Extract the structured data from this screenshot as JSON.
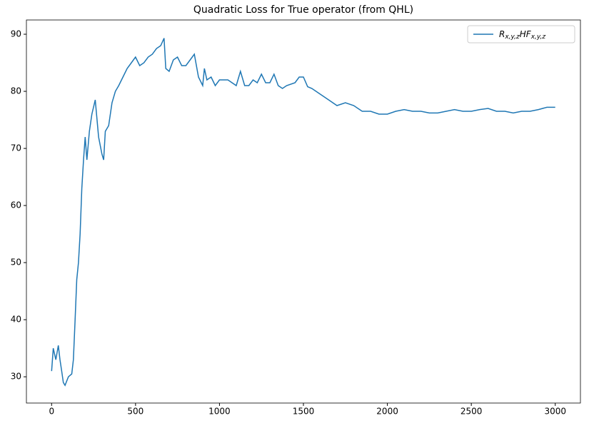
{
  "chart_data": {
    "type": "line",
    "title": "Quadratic Loss for True operator (from QHL)",
    "x": [
      0,
      10,
      25,
      40,
      50,
      60,
      70,
      80,
      100,
      120,
      130,
      140,
      150,
      160,
      170,
      180,
      190,
      200,
      210,
      225,
      240,
      260,
      280,
      300,
      310,
      320,
      340,
      360,
      380,
      400,
      425,
      450,
      475,
      500,
      525,
      550,
      575,
      600,
      625,
      650,
      670,
      680,
      700,
      725,
      750,
      775,
      800,
      825,
      850,
      875,
      900,
      910,
      925,
      950,
      975,
      1000,
      1050,
      1100,
      1125,
      1150,
      1175,
      1200,
      1225,
      1250,
      1275,
      1300,
      1325,
      1350,
      1375,
      1400,
      1450,
      1475,
      1500,
      1525,
      1550,
      1600,
      1625,
      1650,
      1700,
      1750,
      1800,
      1850,
      1900,
      1950,
      2000,
      2050,
      2100,
      2150,
      2200,
      2250,
      2300,
      2350,
      2400,
      2450,
      2500,
      2550,
      2600,
      2650,
      2700,
      2750,
      2800,
      2850,
      2900,
      2950,
      3000
    ],
    "series": [
      {
        "name": "R_{x,y,z}HF_{x,y,z}",
        "color": "#1f77b4",
        "values": [
          31,
          35,
          33,
          35.5,
          33,
          31,
          29,
          28.5,
          30,
          30.5,
          33,
          40,
          47,
          50,
          55,
          63,
          68,
          72,
          68,
          73,
          76,
          78.5,
          72,
          69,
          68,
          73,
          74,
          78,
          80,
          81,
          82.5,
          84,
          85,
          86,
          84.5,
          85,
          86,
          86.5,
          87.5,
          88,
          89.3,
          84,
          83.5,
          85.5,
          86,
          84.5,
          84.5,
          85.5,
          86.5,
          82.5,
          81,
          84,
          82,
          82.5,
          81,
          82,
          82,
          81,
          83.5,
          81,
          81,
          82,
          81.5,
          83,
          81.5,
          81.5,
          83,
          81,
          80.5,
          81,
          81.5,
          82.5,
          82.5,
          80.8,
          80.5,
          79.5,
          79,
          78.5,
          77.5,
          78,
          77.5,
          76.5,
          76.5,
          76,
          76,
          76.5,
          76.8,
          76.5,
          76.5,
          76.2,
          76.2,
          76.5,
          76.8,
          76.5,
          76.5,
          76.8,
          77,
          76.5,
          76.5,
          76.2,
          76.5,
          76.5,
          76.8,
          77.2,
          77.2
        ]
      }
    ],
    "xlim": [
      -150,
      3150
    ],
    "ylim": [
      25.4,
      92.5
    ],
    "xticks": [
      0,
      500,
      1000,
      1500,
      2000,
      2500,
      3000
    ],
    "yticks": [
      30,
      40,
      50,
      60,
      70,
      80,
      90
    ],
    "legend": "upper right"
  }
}
